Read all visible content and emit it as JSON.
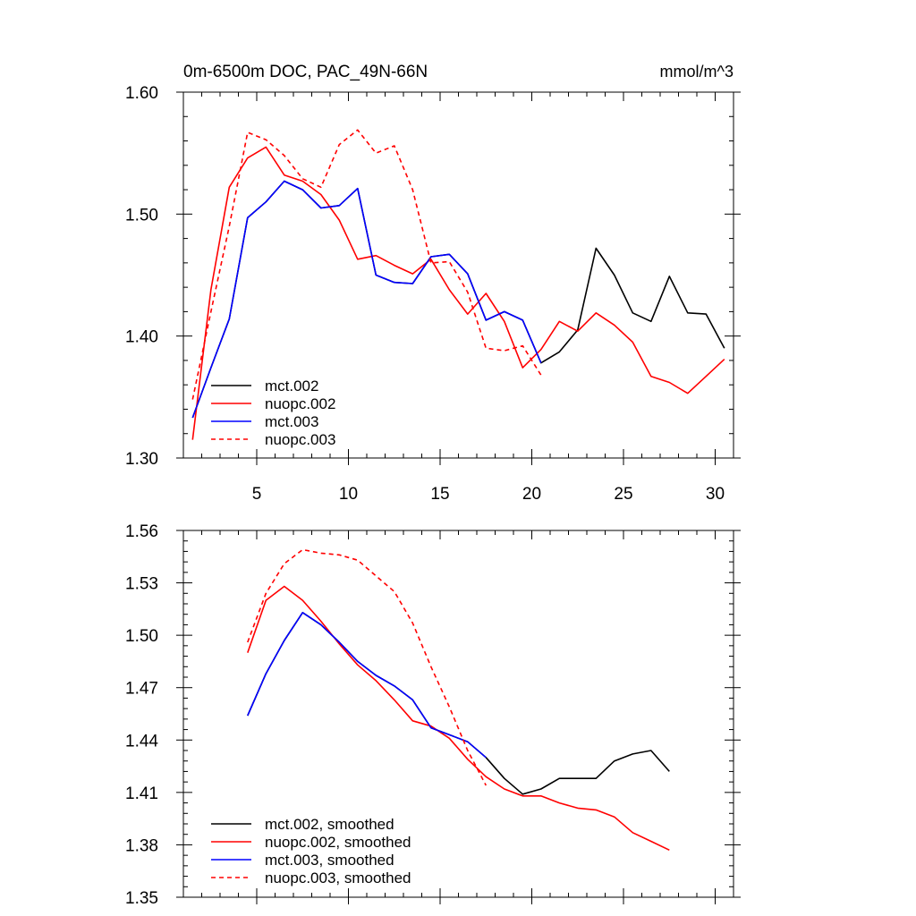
{
  "title": "0m-6500m DOC, PAC_49N-66N",
  "units": "mmol/m^3",
  "colors": {
    "mct.002": "#000000",
    "nuopc.002": "#ff0000",
    "mct.003": "#0000ff",
    "nuopc.003": "#ff0000"
  },
  "chart_data": [
    {
      "type": "line",
      "title": "0m-6500m DOC, PAC_49N-66N",
      "units_label": "mmol/m^3",
      "xlim": [
        1,
        31
      ],
      "ylim": [
        1.3,
        1.6
      ],
      "xticks": [
        5,
        10,
        15,
        20,
        25,
        30
      ],
      "yticks": [
        1.3,
        1.4,
        1.5,
        1.6
      ],
      "ytick_labels": [
        "1.30",
        "1.40",
        "1.50",
        "1.60"
      ],
      "legend": "bottom-left",
      "series": [
        {
          "name": "mct.002",
          "dash": false,
          "x": [
            1.5,
            2.5,
            3.5,
            4.5,
            5.5,
            6.5,
            7.5,
            8.5,
            9.5,
            10.5,
            11.5,
            12.5,
            13.5,
            14.5,
            15.5,
            16.5,
            17.5,
            18.5,
            19.5,
            20.5,
            21.5,
            22.5,
            23.5,
            24.5,
            25.5,
            26.5,
            27.5,
            28.5,
            29.5,
            30.5
          ],
          "values": [
            1.333,
            1.374,
            1.414,
            1.497,
            1.51,
            1.527,
            1.52,
            1.505,
            1.507,
            1.521,
            1.45,
            1.444,
            1.443,
            1.465,
            1.467,
            1.451,
            1.413,
            1.42,
            1.413,
            1.378,
            1.387,
            1.405,
            1.472,
            1.45,
            1.419,
            1.412,
            1.449,
            1.419,
            1.418,
            1.39
          ]
        },
        {
          "name": "nuopc.002",
          "dash": false,
          "x": [
            1.5,
            2.5,
            3.5,
            4.5,
            5.5,
            6.5,
            7.5,
            8.5,
            9.5,
            10.5,
            11.5,
            12.5,
            13.5,
            14.5,
            15.5,
            16.5,
            17.5,
            18.5,
            19.5,
            20.5,
            21.5,
            22.5,
            23.5,
            24.5,
            25.5,
            26.5,
            27.5,
            28.5,
            29.5,
            30.5
          ],
          "values": [
            1.315,
            1.438,
            1.522,
            1.546,
            1.555,
            1.532,
            1.527,
            1.516,
            1.495,
            1.463,
            1.466,
            1.458,
            1.451,
            1.463,
            1.438,
            1.418,
            1.435,
            1.412,
            1.374,
            1.389,
            1.412,
            1.404,
            1.419,
            1.409,
            1.395,
            1.367,
            1.362,
            1.353,
            1.367,
            1.381
          ]
        },
        {
          "name": "mct.003",
          "dash": false,
          "x": [
            1.5,
            2.5,
            3.5,
            4.5,
            5.5,
            6.5,
            7.5,
            8.5,
            9.5,
            10.5,
            11.5,
            12.5,
            13.5,
            14.5,
            15.5,
            16.5,
            17.5,
            18.5,
            19.5,
            20.5
          ],
          "values": [
            1.333,
            1.374,
            1.414,
            1.497,
            1.51,
            1.527,
            1.52,
            1.505,
            1.507,
            1.521,
            1.45,
            1.444,
            1.443,
            1.465,
            1.467,
            1.451,
            1.413,
            1.42,
            1.413,
            1.378
          ]
        },
        {
          "name": "nuopc.003",
          "dash": true,
          "x": [
            1.5,
            2.5,
            3.5,
            4.5,
            5.5,
            6.5,
            7.5,
            8.5,
            9.5,
            10.5,
            11.5,
            12.5,
            13.5,
            14.5,
            15.5,
            16.5,
            17.5,
            18.5,
            19.5,
            20.5
          ],
          "values": [
            1.348,
            1.42,
            1.49,
            1.567,
            1.561,
            1.548,
            1.529,
            1.522,
            1.557,
            1.569,
            1.55,
            1.556,
            1.52,
            1.46,
            1.461,
            1.436,
            1.39,
            1.388,
            1.392,
            1.368
          ]
        }
      ]
    },
    {
      "type": "line",
      "title": "",
      "xlim": [
        1,
        31
      ],
      "ylim": [
        1.35,
        1.56
      ],
      "xticks": [
        5,
        10,
        15,
        20,
        25,
        30
      ],
      "yticks": [
        1.35,
        1.38,
        1.41,
        1.44,
        1.47,
        1.5,
        1.53,
        1.56
      ],
      "ytick_labels": [
        "1.35",
        "1.38",
        "1.41",
        "1.44",
        "1.47",
        "1.50",
        "1.53",
        "1.56"
      ],
      "legend": "bottom-left",
      "series": [
        {
          "name": "mct.002, smoothed",
          "color_key": "mct.002",
          "dash": false,
          "x": [
            4.5,
            5.5,
            6.5,
            7.5,
            8.5,
            9.5,
            10.5,
            11.5,
            12.5,
            13.5,
            14.5,
            15.5,
            16.5,
            17.5,
            18.5,
            19.5,
            20.5,
            21.5,
            22.5,
            23.5,
            24.5,
            25.5,
            26.5,
            27.5
          ],
          "values": [
            1.454,
            1.478,
            1.497,
            1.513,
            1.506,
            1.496,
            1.485,
            1.477,
            1.471,
            1.463,
            1.447,
            1.443,
            1.439,
            1.43,
            1.418,
            1.409,
            1.412,
            1.418,
            1.418,
            1.418,
            1.428,
            1.432,
            1.434,
            1.422
          ]
        },
        {
          "name": "nuopc.002, smoothed",
          "color_key": "nuopc.002",
          "dash": false,
          "x": [
            4.5,
            5.5,
            6.5,
            7.5,
            8.5,
            9.5,
            10.5,
            11.5,
            12.5,
            13.5,
            14.5,
            15.5,
            16.5,
            17.5,
            18.5,
            19.5,
            20.5,
            21.5,
            22.5,
            23.5,
            24.5,
            25.5,
            26.5,
            27.5
          ],
          "values": [
            1.49,
            1.52,
            1.528,
            1.52,
            1.508,
            1.495,
            1.483,
            1.474,
            1.463,
            1.451,
            1.448,
            1.441,
            1.429,
            1.419,
            1.412,
            1.408,
            1.408,
            1.404,
            1.401,
            1.4,
            1.396,
            1.387,
            1.382,
            1.377
          ]
        },
        {
          "name": "mct.003, smoothed",
          "color_key": "mct.003",
          "dash": false,
          "x": [
            4.5,
            5.5,
            6.5,
            7.5,
            8.5,
            9.5,
            10.5,
            11.5,
            12.5,
            13.5,
            14.5,
            15.5,
            16.5,
            17.5
          ],
          "values": [
            1.454,
            1.478,
            1.497,
            1.513,
            1.506,
            1.496,
            1.485,
            1.477,
            1.471,
            1.463,
            1.447,
            1.443,
            1.439,
            1.43
          ]
        },
        {
          "name": "nuopc.003, smoothed",
          "color_key": "nuopc.003",
          "dash": true,
          "x": [
            4.5,
            5.5,
            6.5,
            7.5,
            8.5,
            9.5,
            10.5,
            11.5,
            12.5,
            13.5,
            14.5,
            15.5,
            16.5,
            17.5
          ],
          "values": [
            1.496,
            1.524,
            1.541,
            1.549,
            1.547,
            1.546,
            1.543,
            1.534,
            1.525,
            1.507,
            1.482,
            1.459,
            1.434,
            1.414
          ]
        }
      ]
    }
  ]
}
